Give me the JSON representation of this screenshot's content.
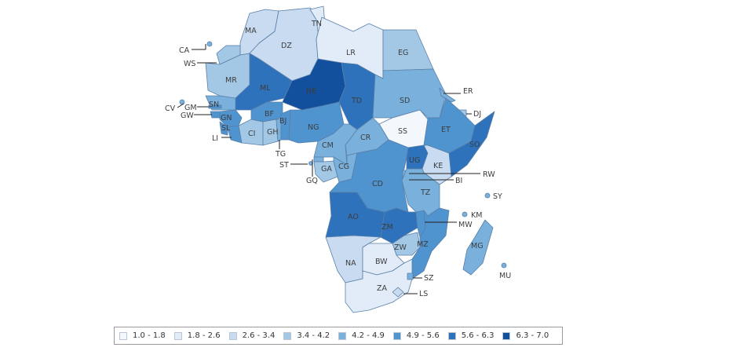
{
  "legend": [
    {
      "label": "1.0 - 1.8",
      "color": "#f4f8fd"
    },
    {
      "label": "1.8 - 2.6",
      "color": "#e2ecf8"
    },
    {
      "label": "2.6 - 3.4",
      "color": "#c8dbf0"
    },
    {
      "label": "3.4 - 4.2",
      "color": "#a3c8e6"
    },
    {
      "label": "4.2 - 4.9",
      "color": "#79b1dc"
    },
    {
      "label": "4.9 - 5.6",
      "color": "#4f93cf"
    },
    {
      "label": "5.6 - 6.3",
      "color": "#2e72bc"
    },
    {
      "label": "6.3 - 7.0",
      "color": "#124f9c"
    }
  ],
  "countries": {
    "MA": {
      "bin": 2
    },
    "DZ": {
      "bin": 2
    },
    "TN": {
      "bin": 1
    },
    "LR": {
      "bin": 1
    },
    "EG": {
      "bin": 3
    },
    "WS": {
      "bin": 3
    },
    "MR": {
      "bin": 3
    },
    "ML": {
      "bin": 6
    },
    "NE": {
      "bin": 7
    },
    "TD": {
      "bin": 6
    },
    "SD": {
      "bin": 4
    },
    "SS": {
      "bin": 0
    },
    "ER": {
      "bin": 4
    },
    "DJ": {
      "bin": 3
    },
    "ET": {
      "bin": 5
    },
    "SO": {
      "bin": 6
    },
    "SN": {
      "bin": 4
    },
    "GM": {
      "bin": 5
    },
    "GW": {
      "bin": 5
    },
    "GN": {
      "bin": 5
    },
    "SL": {
      "bin": 5
    },
    "LI": {
      "bin": 5
    },
    "CI": {
      "bin": 3
    },
    "GH": {
      "bin": 3
    },
    "BF": {
      "bin": 5
    },
    "TG": {
      "bin": 4
    },
    "BJ": {
      "bin": 5
    },
    "NG": {
      "bin": 5
    },
    "CM": {
      "bin": 4
    },
    "CR": {
      "bin": 4
    },
    "GQ": {
      "bin": 4
    },
    "GA": {
      "bin": 3
    },
    "CG": {
      "bin": 4
    },
    "CD": {
      "bin": 5
    },
    "UG": {
      "bin": 6
    },
    "KE": {
      "bin": 2
    },
    "RW": {
      "bin": 4
    },
    "BI": {
      "bin": 5
    },
    "TZ": {
      "bin": 4
    },
    "AO": {
      "bin": 6
    },
    "ZM": {
      "bin": 6
    },
    "MW": {
      "bin": 5
    },
    "MZ": {
      "bin": 5
    },
    "ZW": {
      "bin": 3
    },
    "NA": {
      "bin": 2
    },
    "BW": {
      "bin": 1
    },
    "ZA": {
      "bin": 1
    },
    "SZ": {
      "bin": 4
    },
    "LS": {
      "bin": 2
    },
    "MG": {
      "bin": 4
    },
    "KM": {
      "bin": 4
    },
    "SY": {
      "bin": 4
    },
    "MU": {
      "bin": 4
    },
    "CA": {
      "bin": 4
    },
    "CV": {
      "bin": 4
    },
    "ST": {
      "bin": 4
    }
  }
}
